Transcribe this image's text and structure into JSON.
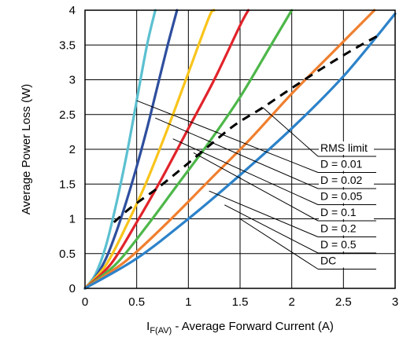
{
  "chart_data": {
    "type": "line",
    "xlabel_main": "I",
    "xlabel_sub": "F(AV)",
    "xlabel_rest": " - Average Forward Current (A)",
    "ylabel": "Average Power Loss (W)",
    "xlim": [
      0,
      3
    ],
    "ylim": [
      0,
      4
    ],
    "x_ticks": [
      "0",
      "0.5",
      "1",
      "1.5",
      "2",
      "2.5",
      "3"
    ],
    "y_ticks": [
      "0",
      "0.5",
      "1",
      "1.5",
      "2",
      "2.5",
      "3",
      "3.5",
      "4"
    ],
    "grid": true,
    "series": [
      {
        "name": "RMS limit",
        "color": "#000000",
        "dashed": true,
        "x": [
          0.28,
          0.45,
          0.7,
          0.95,
          1.2,
          1.45,
          1.72,
          2.0,
          2.3,
          2.6,
          2.83
        ],
        "y": [
          0.95,
          1.17,
          1.44,
          1.74,
          2.05,
          2.35,
          2.6,
          2.88,
          3.17,
          3.44,
          3.63
        ]
      },
      {
        "name": "D = 0.01",
        "color": "#5BC0D0",
        "dashed": false,
        "x": [
          0,
          0.1,
          0.2,
          0.3,
          0.4,
          0.5,
          0.6,
          0.68
        ],
        "y": [
          0,
          0.2,
          0.6,
          1.2,
          1.9,
          2.7,
          3.5,
          4.0
        ]
      },
      {
        "name": "D = 0.02",
        "color": "#2E4F9E",
        "dashed": false,
        "x": [
          0,
          0.1,
          0.2,
          0.3,
          0.4,
          0.5,
          0.6,
          0.7,
          0.8,
          0.89
        ],
        "y": [
          0,
          0.16,
          0.42,
          0.8,
          1.25,
          1.75,
          2.3,
          2.9,
          3.5,
          4.0
        ]
      },
      {
        "name": "D = 0.05",
        "color": "#F9C41B",
        "dashed": false,
        "x": [
          0,
          0.2,
          0.4,
          0.6,
          0.8,
          1.0,
          1.2,
          1.25
        ],
        "y": [
          0,
          0.33,
          0.9,
          1.55,
          2.3,
          3.1,
          3.9,
          4.0
        ]
      },
      {
        "name": "D = 0.1",
        "color": "#E1232B",
        "dashed": false,
        "x": [
          0,
          0.25,
          0.5,
          0.75,
          1.0,
          1.25,
          1.5,
          1.58
        ],
        "y": [
          0,
          0.35,
          0.95,
          1.6,
          2.3,
          3.0,
          3.78,
          4.0
        ]
      },
      {
        "name": "D = 0.2",
        "color": "#4DB749",
        "dashed": false,
        "x": [
          0,
          0.3,
          0.6,
          0.9,
          1.2,
          1.5,
          1.8,
          2.0
        ],
        "y": [
          0,
          0.35,
          0.9,
          1.5,
          2.1,
          2.75,
          3.5,
          4.0
        ]
      },
      {
        "name": "D = 0.5",
        "color": "#F07F2F",
        "dashed": false,
        "x": [
          0,
          0.4,
          0.8,
          1.2,
          1.6,
          2.0,
          2.4,
          2.8
        ],
        "y": [
          0,
          0.4,
          0.95,
          1.55,
          2.15,
          2.8,
          3.4,
          4.0
        ]
      },
      {
        "name": "DC",
        "color": "#2C82C9",
        "dashed": false,
        "x": [
          0,
          0.5,
          1.0,
          1.5,
          2.0,
          2.5,
          3.0
        ],
        "y": [
          0,
          0.43,
          1.0,
          1.63,
          2.3,
          3.05,
          3.95
        ]
      }
    ],
    "legend": [
      {
        "label": "RMS limit",
        "target": [
          1.72,
          2.6
        ]
      },
      {
        "label": "D = 0.01",
        "target": [
          0.5,
          2.7
        ]
      },
      {
        "label": "D = 0.02",
        "target": [
          0.68,
          2.45
        ]
      },
      {
        "label": "D = 0.05",
        "target": [
          0.85,
          2.15
        ]
      },
      {
        "label": "D = 0.1",
        "target": [
          1.05,
          1.95
        ]
      },
      {
        "label": "D = 0.2",
        "target": [
          1.2,
          1.4
        ]
      },
      {
        "label": "D = 0.5",
        "target": [
          1.35,
          1.2
        ]
      },
      {
        "label": "DC",
        "target": [
          1.5,
          1.0
        ]
      }
    ]
  }
}
